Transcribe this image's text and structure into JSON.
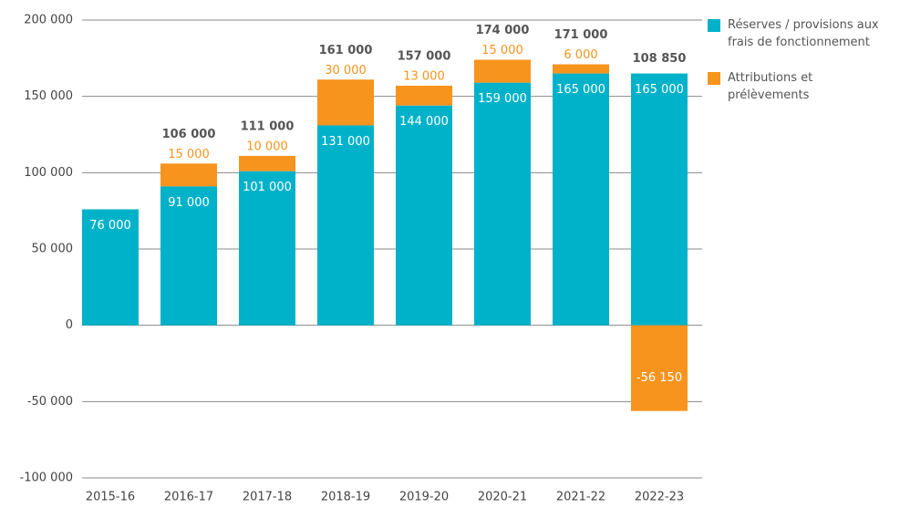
{
  "chart_data": {
    "type": "stacked_bar",
    "categories": [
      "2015-16",
      "2016-17",
      "2017-18",
      "2018-19",
      "2019-20",
      "2020-21",
      "2021-22",
      "2022-23"
    ],
    "series": [
      {
        "name": "Réserves / provisions aux frais de fonctionnement",
        "color": "#00b2c9",
        "values": [
          76000,
          91000,
          101000,
          131000,
          144000,
          159000,
          165000,
          165000
        ],
        "value_labels": [
          "76 000",
          "91 000",
          "101 000",
          "131 000",
          "144 000",
          "159 000",
          "165 000",
          "165 000"
        ]
      },
      {
        "name": "Attributions et prélèvements",
        "color": "#f7941d",
        "values": [
          null,
          15000,
          10000,
          30000,
          13000,
          15000,
          6000,
          -56150
        ],
        "value_labels": [
          null,
          "15 000",
          "10 000",
          "30 000",
          "13 000",
          "15 000",
          "6 000",
          "-56 150"
        ]
      }
    ],
    "totals": [
      null,
      106000,
      111000,
      161000,
      157000,
      174000,
      171000,
      108850
    ],
    "total_labels": [
      null,
      "106 000",
      "111 000",
      "161 000",
      "157 000",
      "174 000",
      "171 000",
      "108 850"
    ],
    "ylim": [
      -100000,
      200000
    ],
    "yticks": [
      {
        "value": -100000,
        "label": "-100 000"
      },
      {
        "value": -50000,
        "label": "-50 000"
      },
      0,
      {
        "value": 50000,
        "label": "50 000"
      },
      {
        "value": 100000,
        "label": "100 000"
      },
      {
        "value": 150000,
        "label": "150 000"
      },
      {
        "value": 200000,
        "label": "200 000"
      }
    ],
    "grid": true,
    "legend": "right"
  }
}
